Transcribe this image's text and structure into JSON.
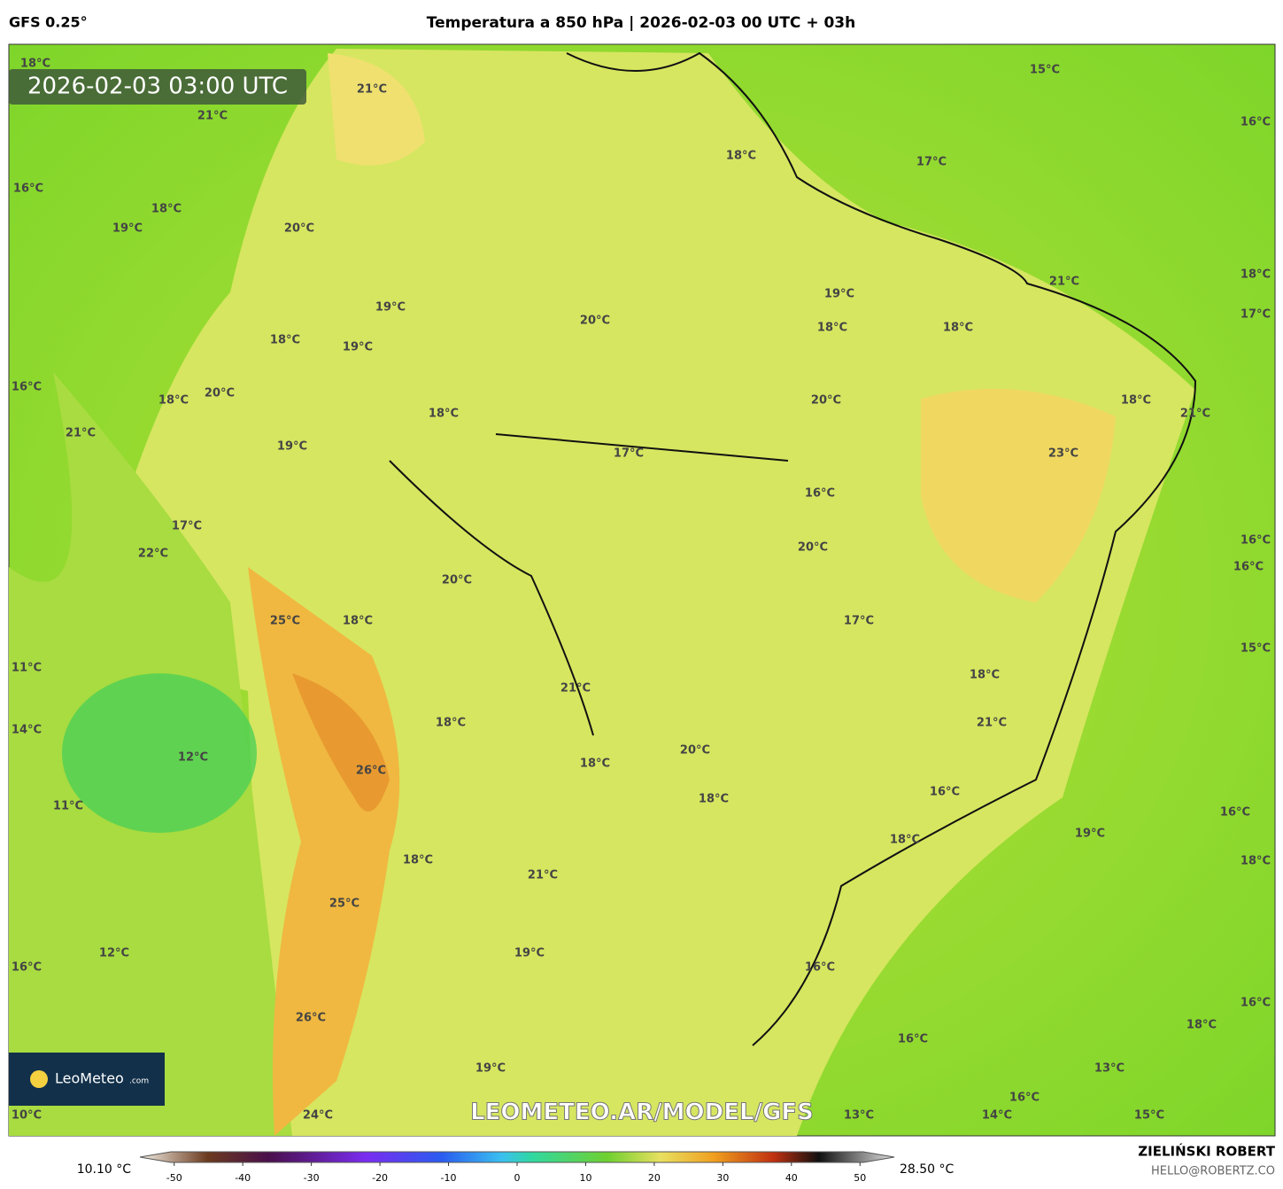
{
  "header": {
    "model": "GFS 0.25°",
    "title": "Temperatura a 850 hPa | 2026-02-03 00 UTC + 03h"
  },
  "map": {
    "timestamp": "2026-02-03 03:00 UTC",
    "labels": [
      "18°C",
      "21°C",
      "21°C",
      "15°C",
      "16°C",
      "18°C",
      "17°C",
      "16°C",
      "18°C",
      "19°C",
      "20°C",
      "21°C",
      "18°C",
      "17°C",
      "19°C",
      "19°C",
      "20°C",
      "18°C",
      "18°C",
      "18°C",
      "19°C",
      "16°C",
      "20°C",
      "18°C",
      "20°C",
      "18°C",
      "21°C",
      "18°C",
      "21°C",
      "19°C",
      "17°C",
      "23°C",
      "16°C",
      "17°C",
      "16°C",
      "20°C",
      "22°C",
      "16°C",
      "20°C",
      "18°C",
      "25°C",
      "17°C",
      "15°C",
      "11°C",
      "18°C",
      "21°C",
      "18°C",
      "21°C",
      "14°C",
      "20°C",
      "12°C",
      "18°C",
      "26°C",
      "16°C",
      "18°C",
      "11°C",
      "16°C",
      "19°C",
      "18°C",
      "18°C",
      "18°C",
      "21°C",
      "25°C",
      "12°C",
      "19°C",
      "16°C",
      "16°C",
      "16°C",
      "26°C",
      "18°C",
      "16°C",
      "19°C",
      "13°C",
      "16°C",
      "10°C",
      "24°C",
      "13°C",
      "14°C",
      "15°C"
    ],
    "watermark": "LEOMETEO.AR/MODEL/GFS",
    "logo": {
      "name": "LeoMeteo",
      "suffix": ".com"
    }
  },
  "colorbar": {
    "min_label": "10.10 °C",
    "max_label": "28.50 °C",
    "lim": [
      -55,
      55
    ],
    "ticks": [
      -50,
      -40,
      -30,
      -20,
      -10,
      0,
      10,
      20,
      30,
      40,
      50
    ]
  },
  "footer": {
    "author": "ZIELIŃSKI ROBERT",
    "contact": "HELLO@ROBERTZ.CO"
  }
}
